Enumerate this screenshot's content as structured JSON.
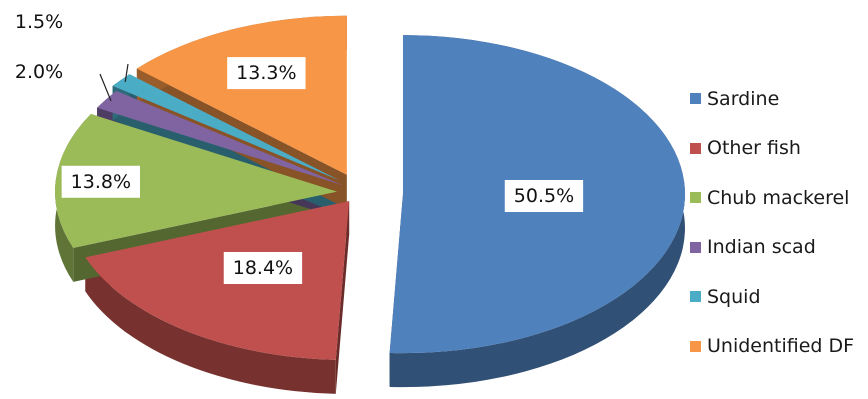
{
  "chart_data": {
    "type": "pie",
    "style": "3d-exploded",
    "slices": [
      {
        "name": "Sardine",
        "value": 50.5,
        "label": "50.5%",
        "color": "#4f81bd"
      },
      {
        "name": "Other fish",
        "value": 18.4,
        "label": "18.4%",
        "color": "#c0504d"
      },
      {
        "name": "Chub mackerel",
        "value": 13.8,
        "label": "13.8%",
        "color": "#9bbb59"
      },
      {
        "name": "Indian scad",
        "value": 2.0,
        "label": "2.0%",
        "color": "#8064a2"
      },
      {
        "name": "Squid",
        "value": 1.5,
        "label": "1.5%",
        "color": "#4bacc6"
      },
      {
        "name": "Unidentified DF",
        "value": 13.3,
        "label": "13.3%",
        "color": "#f79646"
      }
    ],
    "legend_position": "right"
  }
}
